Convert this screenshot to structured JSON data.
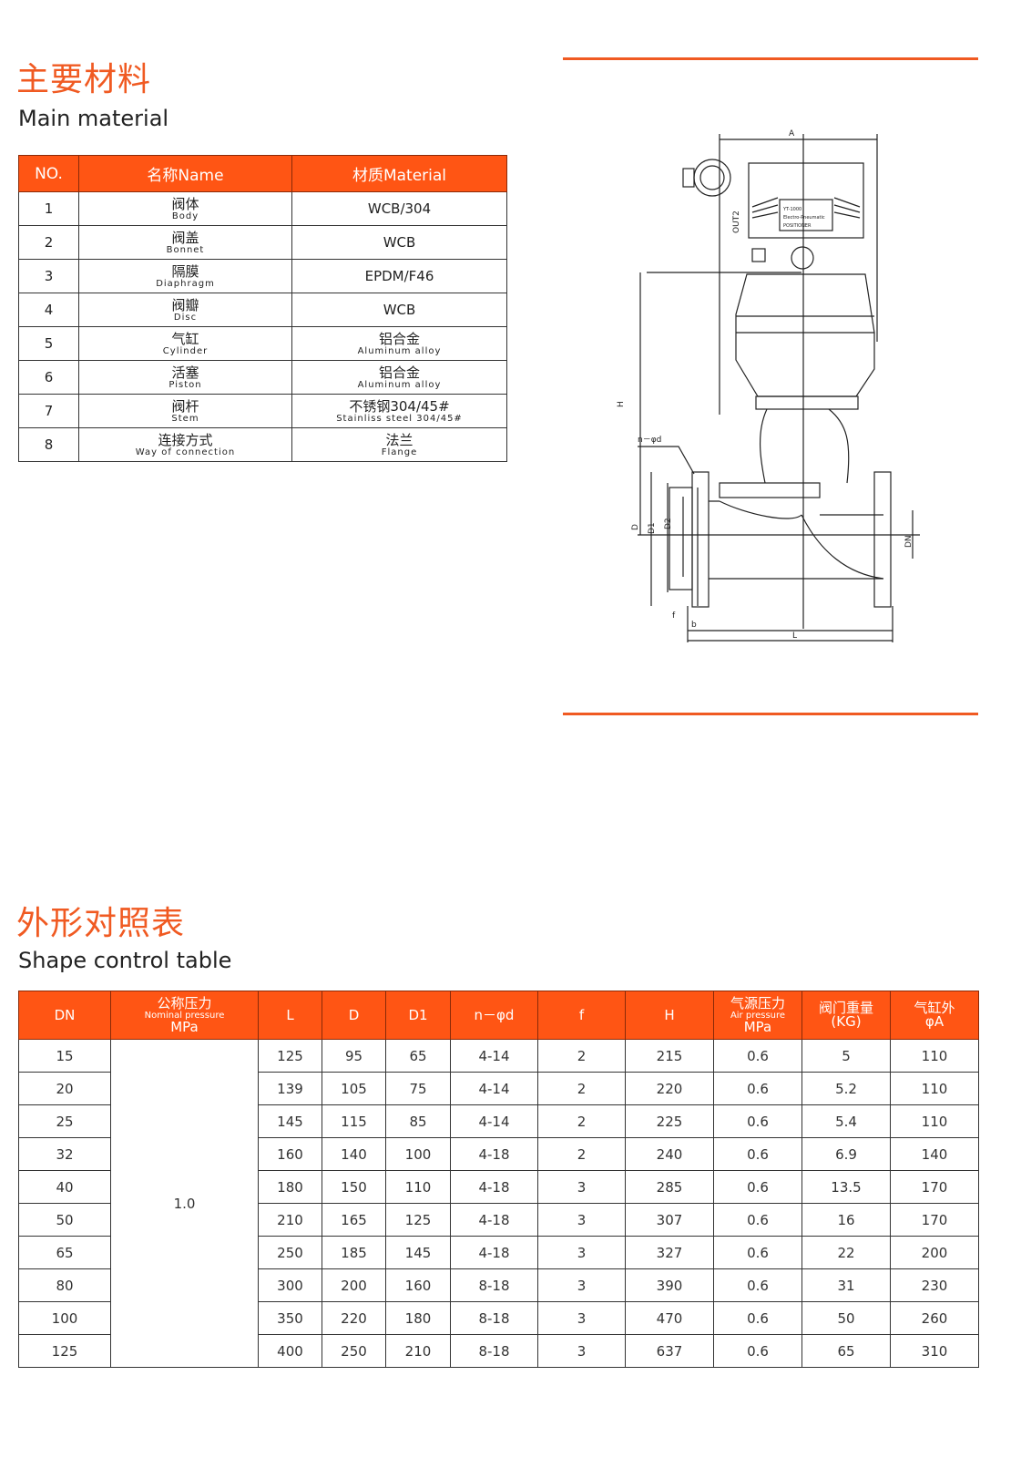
{
  "materials_section": {
    "title_cn": "主要材料",
    "title_en": "Main material",
    "headers": [
      "NO.",
      "名称Name",
      "材质Material"
    ],
    "rows": [
      {
        "no": "1",
        "name_cn": "阀体",
        "name_en": "Body",
        "mat_cn": "WCB/304",
        "mat_en": ""
      },
      {
        "no": "2",
        "name_cn": "阀盖",
        "name_en": "Bonnet",
        "mat_cn": "WCB",
        "mat_en": ""
      },
      {
        "no": "3",
        "name_cn": "隔膜",
        "name_en": "Diaphragm",
        "mat_cn": "EPDM/F46",
        "mat_en": ""
      },
      {
        "no": "4",
        "name_cn": "阀瓣",
        "name_en": "Disc",
        "mat_cn": "WCB",
        "mat_en": ""
      },
      {
        "no": "5",
        "name_cn": "气缸",
        "name_en": "Cylinder",
        "mat_cn": "铝合金",
        "mat_en": "Aluminum alloy"
      },
      {
        "no": "6",
        "name_cn": "活塞",
        "name_en": "Piston",
        "mat_cn": "铝合金",
        "mat_en": "Aluminum alloy"
      },
      {
        "no": "7",
        "name_cn": "阀杆",
        "name_en": "Stem",
        "mat_cn": "不锈钢304/45#",
        "mat_en": "Stainliss steel 304/45#"
      },
      {
        "no": "8",
        "name_cn": "连接方式",
        "name_en": "Way of connection",
        "mat_cn": "法兰",
        "mat_en": "Flange"
      }
    ]
  },
  "diagram": {
    "labels": {
      "A": "A",
      "H": "H",
      "D": "D",
      "D1": "D1",
      "D2": "D2",
      "DN": "DN",
      "L": "L",
      "f": "f",
      "b": "b",
      "n_phi_d": "n－φd",
      "out": "OUT2",
      "plate1": "YT-1000",
      "plate2": "Electro-Pneumatic",
      "plate3": "POSITIONER"
    }
  },
  "shape_section": {
    "title_cn": "外形对照表",
    "title_en": "Shape control table",
    "headers": [
      {
        "cn": "DN",
        "en": "",
        "unit": ""
      },
      {
        "cn": "公称压力",
        "en": "Nominal pressure",
        "unit": "MPa"
      },
      {
        "cn": "L",
        "en": "",
        "unit": ""
      },
      {
        "cn": "D",
        "en": "",
        "unit": ""
      },
      {
        "cn": "D1",
        "en": "",
        "unit": ""
      },
      {
        "cn": "n－φd",
        "en": "",
        "unit": ""
      },
      {
        "cn": "f",
        "en": "",
        "unit": ""
      },
      {
        "cn": "H",
        "en": "",
        "unit": ""
      },
      {
        "cn": "气源压力",
        "en": "Air pressure",
        "unit": "MPa"
      },
      {
        "cn": "阀门重量",
        "en": "",
        "unit": "(KG)"
      },
      {
        "cn": "气缸外",
        "en": "",
        "unit": "φA"
      }
    ],
    "nominal_pressure": "1.0",
    "rows": [
      [
        "15",
        "125",
        "95",
        "65",
        "4-14",
        "2",
        "215",
        "0.6",
        "5",
        "110"
      ],
      [
        "20",
        "139",
        "105",
        "75",
        "4-14",
        "2",
        "220",
        "0.6",
        "5.2",
        "110"
      ],
      [
        "25",
        "145",
        "115",
        "85",
        "4-14",
        "2",
        "225",
        "0.6",
        "5.4",
        "110"
      ],
      [
        "32",
        "160",
        "140",
        "100",
        "4-18",
        "2",
        "240",
        "0.6",
        "6.9",
        "140"
      ],
      [
        "40",
        "180",
        "150",
        "110",
        "4-18",
        "3",
        "285",
        "0.6",
        "13.5",
        "170"
      ],
      [
        "50",
        "210",
        "165",
        "125",
        "4-18",
        "3",
        "307",
        "0.6",
        "16",
        "170"
      ],
      [
        "65",
        "250",
        "185",
        "145",
        "4-18",
        "3",
        "327",
        "0.6",
        "22",
        "200"
      ],
      [
        "80",
        "300",
        "200",
        "160",
        "8-18",
        "3",
        "390",
        "0.6",
        "31",
        "230"
      ],
      [
        "100",
        "350",
        "220",
        "180",
        "8-18",
        "3",
        "470",
        "0.6",
        "50",
        "260"
      ],
      [
        "125",
        "400",
        "250",
        "210",
        "8-18",
        "3",
        "637",
        "0.6",
        "65",
        "310"
      ]
    ]
  },
  "colors": {
    "accent": "#f05a22",
    "header_bg": "#ff5514"
  }
}
